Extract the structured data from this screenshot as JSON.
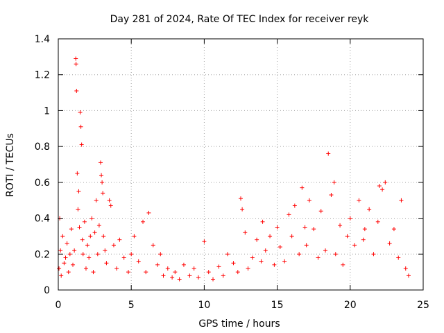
{
  "chart_data": {
    "type": "scatter",
    "title": "Day 281 of 2024, Rate Of TEC Index for receiver reyk",
    "xlabel": "GPS time / hours",
    "ylabel": "ROTI / TECUs",
    "xlim": [
      0,
      25
    ],
    "ylim": [
      0,
      1.4
    ],
    "xticks": [
      0,
      5,
      10,
      15,
      20,
      25
    ],
    "xtick_labels": [
      "0",
      "5",
      "10",
      "15",
      "20",
      "25"
    ],
    "yticks": [
      0,
      0.2,
      0.4,
      0.6,
      0.8,
      1,
      1.2,
      1.4
    ],
    "ytick_labels": [
      "0",
      "0.2",
      "0.4",
      "0.6",
      "0.8",
      "1",
      "1.2",
      "1.4"
    ],
    "grid": true,
    "marker": "+",
    "color": "#ff0000",
    "series": [
      {
        "name": "ROTI",
        "x": [
          0.05,
          0.1,
          0.15,
          0.2,
          0.3,
          0.4,
          0.5,
          0.6,
          0.7,
          0.8,
          0.9,
          1.0,
          1.1,
          1.2,
          1.22,
          1.25,
          1.3,
          1.35,
          1.4,
          1.45,
          1.5,
          1.55,
          1.6,
          1.65,
          1.7,
          1.8,
          1.9,
          2.0,
          2.1,
          2.2,
          2.3,
          2.4,
          2.5,
          2.6,
          2.7,
          2.8,
          2.9,
          2.95,
          3.0,
          3.05,
          3.1,
          3.2,
          3.3,
          3.5,
          3.6,
          3.8,
          4.0,
          4.2,
          4.5,
          4.8,
          5.0,
          5.2,
          5.5,
          5.8,
          6.0,
          6.2,
          6.5,
          6.8,
          7.0,
          7.2,
          7.5,
          7.8,
          8.0,
          8.3,
          8.6,
          9.0,
          9.3,
          9.6,
          10.0,
          10.3,
          10.6,
          11.0,
          11.3,
          11.6,
          12.0,
          12.3,
          12.5,
          12.6,
          12.8,
          13.0,
          13.3,
          13.6,
          13.9,
          14.0,
          14.2,
          14.5,
          14.8,
          15.0,
          15.2,
          15.5,
          15.8,
          16.0,
          16.2,
          16.5,
          16.7,
          16.9,
          17.0,
          17.2,
          17.5,
          17.8,
          18.0,
          18.3,
          18.5,
          18.7,
          18.9,
          19.0,
          19.3,
          19.5,
          19.8,
          20.0,
          20.3,
          20.6,
          20.9,
          21.0,
          21.3,
          21.6,
          21.9,
          22.0,
          22.2,
          22.4,
          22.7,
          23.0,
          23.3,
          23.5,
          23.8,
          24.0
        ],
        "y": [
          0.12,
          0.4,
          0.22,
          0.08,
          0.3,
          0.15,
          0.18,
          0.26,
          0.1,
          0.2,
          0.34,
          0.14,
          0.22,
          1.29,
          1.26,
          1.11,
          0.65,
          0.45,
          0.55,
          0.35,
          0.99,
          0.91,
          0.81,
          0.28,
          0.2,
          0.38,
          0.12,
          0.25,
          0.18,
          0.3,
          0.4,
          0.1,
          0.32,
          0.5,
          0.2,
          0.36,
          0.71,
          0.64,
          0.6,
          0.54,
          0.3,
          0.22,
          0.15,
          0.5,
          0.47,
          0.25,
          0.12,
          0.28,
          0.18,
          0.1,
          0.2,
          0.3,
          0.16,
          0.38,
          0.1,
          0.43,
          0.25,
          0.14,
          0.2,
          0.08,
          0.12,
          0.07,
          0.1,
          0.06,
          0.14,
          0.08,
          0.12,
          0.07,
          0.27,
          0.1,
          0.06,
          0.13,
          0.08,
          0.2,
          0.15,
          0.1,
          0.51,
          0.45,
          0.32,
          0.12,
          0.18,
          0.28,
          0.16,
          0.38,
          0.22,
          0.3,
          0.14,
          0.35,
          0.24,
          0.16,
          0.42,
          0.3,
          0.47,
          0.2,
          0.57,
          0.35,
          0.25,
          0.5,
          0.34,
          0.18,
          0.44,
          0.22,
          0.76,
          0.53,
          0.6,
          0.2,
          0.36,
          0.14,
          0.3,
          0.4,
          0.25,
          0.5,
          0.28,
          0.34,
          0.45,
          0.2,
          0.38,
          0.58,
          0.56,
          0.6,
          0.26,
          0.34,
          0.18,
          0.5,
          0.12,
          0.08
        ]
      }
    ]
  }
}
